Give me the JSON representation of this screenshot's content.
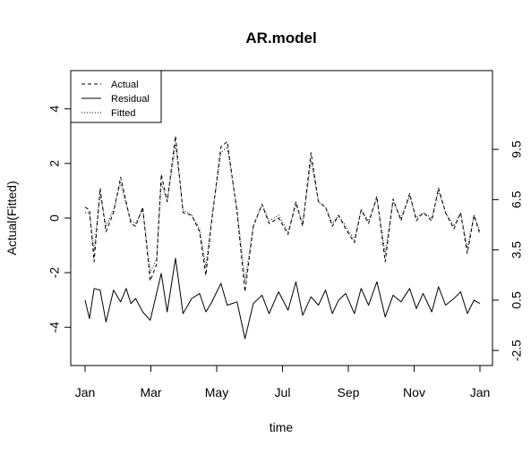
{
  "chart_data": {
    "type": "line",
    "title": "AR.model",
    "xlabel": "time",
    "ylabel": "Actual(Fitted)",
    "x_ticks": [
      "Jan",
      "Mar",
      "May",
      "Jul",
      "Sep",
      "Nov",
      "Jan"
    ],
    "y_ticks": [
      "-4",
      "-2",
      "0",
      "2",
      "4"
    ],
    "y2_ticks": [
      "-2.5",
      "0.5",
      "3.5",
      "6.5",
      "9.5"
    ],
    "ylim": [
      -5.4,
      5.4
    ],
    "y2lim": [
      -3.4,
      14.2
    ],
    "grid": false,
    "legend_position": "top-left",
    "legend": [
      {
        "name": "Actual",
        "style": "dashed"
      },
      {
        "name": "Residual",
        "style": "solid"
      },
      {
        "name": "Fitted",
        "style": "dotted"
      }
    ],
    "series": [
      {
        "name": "Actual",
        "style": "dashed",
        "axis": "left",
        "points": [
          [
            0,
            0.4
          ],
          [
            1.1,
            0.3
          ],
          [
            2.3,
            -1.6
          ],
          [
            3.8,
            1.1
          ],
          [
            5.3,
            -0.5
          ],
          [
            7.2,
            0.2
          ],
          [
            9,
            1.5
          ],
          [
            10.4,
            0.6
          ],
          [
            11.6,
            -0.2
          ],
          [
            12.8,
            -0.3
          ],
          [
            14.6,
            0.4
          ],
          [
            16.5,
            -2.3
          ],
          [
            18.1,
            -1.7
          ],
          [
            19.3,
            1.6
          ],
          [
            20.8,
            0.6
          ],
          [
            22.9,
            3.0
          ],
          [
            24.8,
            0.2
          ],
          [
            27,
            0.1
          ],
          [
            29,
            -0.5
          ],
          [
            30.6,
            -2.1
          ],
          [
            31.9,
            -0.3
          ],
          [
            34.4,
            2.6
          ],
          [
            36,
            2.8
          ],
          [
            38.5,
            0.2
          ],
          [
            40.5,
            -2.7
          ],
          [
            42.6,
            -0.3
          ],
          [
            44.8,
            0.5
          ],
          [
            46.6,
            -0.2
          ],
          [
            49,
            0.0
          ],
          [
            51.4,
            -0.6
          ],
          [
            53.4,
            0.6
          ],
          [
            55.1,
            -0.3
          ],
          [
            57.2,
            2.4
          ],
          [
            59.1,
            0.6
          ],
          [
            60.9,
            0.4
          ],
          [
            62.6,
            -0.3
          ],
          [
            64.2,
            0.1
          ],
          [
            66,
            -0.4
          ],
          [
            68.2,
            -0.9
          ],
          [
            69.9,
            0.3
          ],
          [
            71.8,
            -0.2
          ],
          [
            73.9,
            0.8
          ],
          [
            76,
            -1.6
          ],
          [
            78,
            0.7
          ],
          [
            80,
            -0.1
          ],
          [
            82.2,
            0.9
          ],
          [
            83.9,
            -0.1
          ],
          [
            85.6,
            0.2
          ],
          [
            87.8,
            -0.1
          ],
          [
            89.5,
            1.1
          ],
          [
            91.3,
            0.2
          ],
          [
            93.4,
            -0.4
          ],
          [
            95.1,
            0.2
          ],
          [
            96.8,
            -1.3
          ],
          [
            98.5,
            0.1
          ],
          [
            100,
            -0.6
          ]
        ]
      },
      {
        "name": "Fitted",
        "style": "dotted",
        "axis": "left",
        "points": [
          [
            0,
            0.2
          ],
          [
            1.1,
            0.2
          ],
          [
            2.3,
            -1.2
          ],
          [
            3.8,
            0.9
          ],
          [
            5.3,
            -0.3
          ],
          [
            7.2,
            0.3
          ],
          [
            9,
            1.3
          ],
          [
            10.4,
            0.5
          ],
          [
            11.6,
            -0.1
          ],
          [
            12.8,
            -0.2
          ],
          [
            14.6,
            0.3
          ],
          [
            16.5,
            -2.0
          ],
          [
            18.1,
            -1.5
          ],
          [
            19.3,
            1.3
          ],
          [
            20.8,
            0.6
          ],
          [
            22.9,
            2.7
          ],
          [
            24.8,
            0.3
          ],
          [
            27,
            0.1
          ],
          [
            29,
            -0.4
          ],
          [
            30.6,
            -1.8
          ],
          [
            31.9,
            -0.2
          ],
          [
            34.4,
            2.4
          ],
          [
            36,
            2.6
          ],
          [
            38.5,
            0.3
          ],
          [
            40.5,
            -2.3
          ],
          [
            42.6,
            -0.3
          ],
          [
            44.8,
            0.5
          ],
          [
            46.6,
            -0.1
          ],
          [
            49,
            0.1
          ],
          [
            51.4,
            -0.5
          ],
          [
            53.4,
            0.5
          ],
          [
            55.1,
            -0.2
          ],
          [
            57.2,
            2.1
          ],
          [
            59.1,
            0.6
          ],
          [
            60.9,
            0.4
          ],
          [
            62.6,
            -0.2
          ],
          [
            64.2,
            0.1
          ],
          [
            66,
            -0.3
          ],
          [
            68.2,
            -0.8
          ],
          [
            69.9,
            0.3
          ],
          [
            71.8,
            -0.1
          ],
          [
            73.9,
            0.7
          ],
          [
            76,
            -1.3
          ],
          [
            78,
            0.6
          ],
          [
            80,
            0.0
          ],
          [
            82.2,
            0.8
          ],
          [
            83.9,
            0.0
          ],
          [
            85.6,
            0.2
          ],
          [
            87.8,
            0.0
          ],
          [
            89.5,
            1.0
          ],
          [
            91.3,
            0.2
          ],
          [
            93.4,
            -0.3
          ],
          [
            95.1,
            0.2
          ],
          [
            96.8,
            -1.1
          ],
          [
            98.5,
            0.1
          ],
          [
            100,
            -0.5
          ]
        ]
      },
      {
        "name": "Residual",
        "style": "solid",
        "axis": "right",
        "points": [
          [
            0,
            0.5
          ],
          [
            1.1,
            -0.6
          ],
          [
            2.3,
            1.2
          ],
          [
            3.8,
            1.1
          ],
          [
            5.3,
            -0.8
          ],
          [
            7.2,
            1.1
          ],
          [
            9,
            0.4
          ],
          [
            10.4,
            1.2
          ],
          [
            11.6,
            0.3
          ],
          [
            12.8,
            0.6
          ],
          [
            14.6,
            -0.2
          ],
          [
            16.5,
            -0.7
          ],
          [
            18.1,
            0.9
          ],
          [
            19.3,
            2.1
          ],
          [
            20.8,
            -0.2
          ],
          [
            22.9,
            3.0
          ],
          [
            24.8,
            -0.3
          ],
          [
            27,
            0.6
          ],
          [
            29,
            0.9
          ],
          [
            30.6,
            -0.2
          ],
          [
            31.9,
            0.3
          ],
          [
            34.4,
            1.5
          ],
          [
            36,
            0.2
          ],
          [
            38.5,
            0.4
          ],
          [
            40.5,
            -1.8
          ],
          [
            42.6,
            0.3
          ],
          [
            44.8,
            0.8
          ],
          [
            46.6,
            -0.3
          ],
          [
            49,
            1.0
          ],
          [
            51.4,
            -0.1
          ],
          [
            53.4,
            1.6
          ],
          [
            55.1,
            -0.4
          ],
          [
            57.2,
            0.7
          ],
          [
            59.1,
            0.2
          ],
          [
            60.9,
            1.1
          ],
          [
            62.6,
            -0.3
          ],
          [
            64.2,
            0.5
          ],
          [
            66,
            0.9
          ],
          [
            68.2,
            -0.3
          ],
          [
            69.9,
            1.2
          ],
          [
            71.8,
            0.2
          ],
          [
            73.9,
            1.6
          ],
          [
            76,
            -0.5
          ],
          [
            78,
            0.8
          ],
          [
            80,
            0.4
          ],
          [
            82.2,
            1.2
          ],
          [
            83.9,
            0.0
          ],
          [
            85.6,
            0.9
          ],
          [
            87.8,
            -0.2
          ],
          [
            89.5,
            1.3
          ],
          [
            91.3,
            0.2
          ],
          [
            93.4,
            0.6
          ],
          [
            95.1,
            1.0
          ],
          [
            96.8,
            -0.3
          ],
          [
            98.5,
            0.5
          ],
          [
            100,
            0.3
          ]
        ]
      }
    ]
  }
}
